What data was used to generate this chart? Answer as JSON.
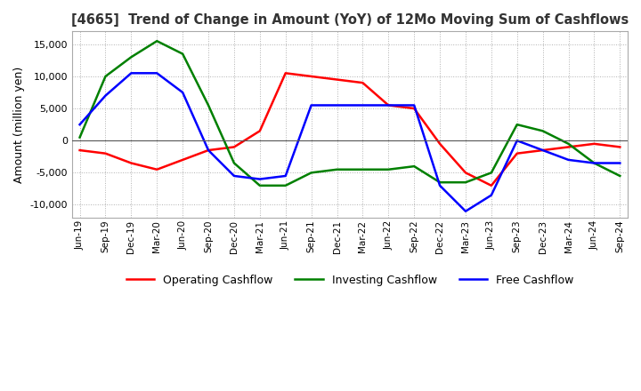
{
  "title": "[4665]  Trend of Change in Amount (YoY) of 12Mo Moving Sum of Cashflows",
  "ylabel": "Amount (million yen)",
  "x_labels": [
    "Jun-19",
    "Sep-19",
    "Dec-19",
    "Mar-20",
    "Jun-20",
    "Sep-20",
    "Dec-20",
    "Mar-21",
    "Jun-21",
    "Sep-21",
    "Dec-21",
    "Mar-22",
    "Jun-22",
    "Sep-22",
    "Dec-22",
    "Mar-23",
    "Jun-23",
    "Sep-23",
    "Dec-23",
    "Mar-24",
    "Jun-24",
    "Sep-24"
  ],
  "operating": [
    -1500,
    -2000,
    -3500,
    -4500,
    -3000,
    -1500,
    -1000,
    1500,
    10500,
    10000,
    9500,
    9000,
    5500,
    5000,
    -500,
    -5000,
    -7000,
    -2000,
    -1500,
    -1000,
    -500,
    -1000
  ],
  "investing": [
    500,
    10000,
    13000,
    15500,
    13500,
    5500,
    -3500,
    -7000,
    -7000,
    -5000,
    -4500,
    -4500,
    -4500,
    -4000,
    -6500,
    -6500,
    -5000,
    2500,
    1500,
    -500,
    -3500,
    -5500
  ],
  "free": [
    2500,
    7000,
    10500,
    10500,
    7500,
    -1500,
    -5500,
    -6000,
    -5500,
    5500,
    5500,
    5500,
    5500,
    5500,
    -7000,
    -11000,
    -8500,
    0,
    -1500,
    -3000,
    -3500,
    -3500
  ],
  "ylim": [
    -12000,
    17000
  ],
  "yticks": [
    -10000,
    -5000,
    0,
    5000,
    10000,
    15000
  ],
  "operating_color": "#ff0000",
  "investing_color": "#008000",
  "free_color": "#0000ff",
  "background_color": "#ffffff",
  "grid_color": "#b0b0b0"
}
